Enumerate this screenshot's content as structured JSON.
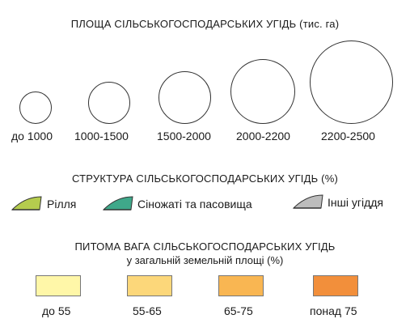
{
  "area_legend": {
    "title": "ПЛОЩА СІЛЬСЬКОГОСПОДАРСЬКИХ УГІДЬ (тис. га)",
    "classes": [
      {
        "label": "до 1000"
      },
      {
        "label": "1000-1500"
      },
      {
        "label": "1500-2000"
      },
      {
        "label": "2000-2200"
      },
      {
        "label": "2200-2500"
      }
    ]
  },
  "structure_legend": {
    "title": "СТРУКТУРА СІЛЬСЬКОГОСПОДАРСЬКИХ УГІДЬ (%)",
    "items": [
      {
        "label": "Рілля",
        "color": "#b5cc4e"
      },
      {
        "label": "Сіножаті та пасовища",
        "color": "#3fa88a"
      },
      {
        "label": "Інші угіддя",
        "color": "#bdbdbd"
      }
    ]
  },
  "share_legend": {
    "title": "ПИТОМА ВАГА СІЛЬСЬКОГОСПОДАРСЬКИХ УГІДЬ",
    "subtitle": "у загальній земельній площі (%)",
    "classes": [
      {
        "label": "до 55",
        "color": "#fff7a8"
      },
      {
        "label": "55-65",
        "color": "#fcd77a"
      },
      {
        "label": "65-75",
        "color": "#f9b652"
      },
      {
        "label": "понад 75",
        "color": "#f28f3b"
      }
    ]
  }
}
